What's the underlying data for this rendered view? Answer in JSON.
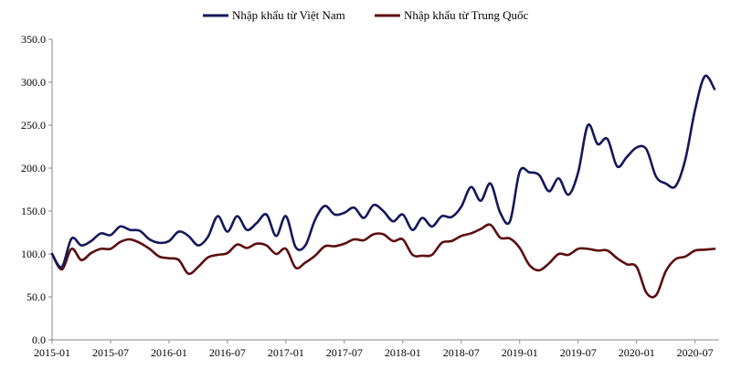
{
  "chart_data": {
    "type": "line",
    "legend_position": "top",
    "grid": false,
    "ylim": [
      0,
      350
    ],
    "yticks": [
      "0.0",
      "50.0",
      "100.0",
      "150.0",
      "200.0",
      "250.0",
      "300.0",
      "350.0"
    ],
    "xtick_labels": [
      "2015-01",
      "2015-07",
      "2016-01",
      "2016-07",
      "2017-01",
      "2017-07",
      "2018-01",
      "2018-07",
      "2019-01",
      "2019-07",
      "2020-01",
      "2020-07"
    ],
    "x": [
      "2015-01",
      "2015-02",
      "2015-03",
      "2015-04",
      "2015-05",
      "2015-06",
      "2015-07",
      "2015-08",
      "2015-09",
      "2015-10",
      "2015-11",
      "2015-12",
      "2016-01",
      "2016-02",
      "2016-03",
      "2016-04",
      "2016-05",
      "2016-06",
      "2016-07",
      "2016-08",
      "2016-09",
      "2016-10",
      "2016-11",
      "2016-12",
      "2017-01",
      "2017-02",
      "2017-03",
      "2017-04",
      "2017-05",
      "2017-06",
      "2017-07",
      "2017-08",
      "2017-09",
      "2017-10",
      "2017-11",
      "2017-12",
      "2018-01",
      "2018-02",
      "2018-03",
      "2018-04",
      "2018-05",
      "2018-06",
      "2018-07",
      "2018-08",
      "2018-09",
      "2018-10",
      "2018-11",
      "2018-12",
      "2019-01",
      "2019-02",
      "2019-03",
      "2019-04",
      "2019-05",
      "2019-06",
      "2019-07",
      "2019-08",
      "2019-09",
      "2019-10",
      "2019-11",
      "2019-12",
      "2020-01",
      "2020-02",
      "2020-03",
      "2020-04",
      "2020-05",
      "2020-06",
      "2020-07",
      "2020-08",
      "2020-09"
    ],
    "series": [
      {
        "name": "Nhập khẩu từ Việt Nam",
        "color": "#14175a",
        "values": [
          100,
          85,
          118,
          110,
          115,
          124,
          122,
          132,
          128,
          127,
          117,
          113,
          115,
          126,
          121,
          110,
          120,
          144,
          126,
          144,
          128,
          136,
          146,
          121,
          144,
          108,
          110,
          140,
          156,
          146,
          148,
          154,
          142,
          157,
          150,
          138,
          146,
          128,
          142,
          132,
          144,
          143,
          155,
          178,
          162,
          182,
          148,
          138,
          196,
          195,
          192,
          173,
          188,
          169,
          195,
          250,
          228,
          234,
          202,
          213,
          224,
          222,
          190,
          182,
          179,
          210,
          268,
          307,
          292
        ]
      },
      {
        "name": "Nhập khẩu từ Trung Quốc",
        "color": "#5c0d10",
        "values": [
          100,
          82,
          106,
          93,
          101,
          106,
          106,
          114,
          117,
          113,
          106,
          97,
          95,
          93,
          77,
          85,
          96,
          99,
          101,
          111,
          107,
          112,
          110,
          100,
          106,
          84,
          90,
          98,
          109,
          109,
          112,
          117,
          116,
          123,
          123,
          115,
          117,
          99,
          98,
          99,
          113,
          115,
          121,
          124,
          129,
          134,
          119,
          118,
          107,
          87,
          81,
          89,
          100,
          99,
          106,
          106,
          104,
          104,
          95,
          88,
          85,
          55,
          52,
          80,
          94,
          97,
          104,
          105,
          106
        ]
      }
    ]
  }
}
